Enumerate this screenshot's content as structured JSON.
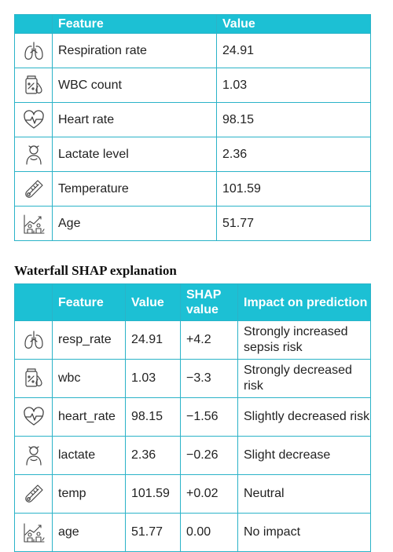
{
  "table1": {
    "headers": [
      "Feature",
      "Value"
    ],
    "rows": [
      {
        "icon": "lungs-icon",
        "feature": "Respiration rate",
        "value": "24.91"
      },
      {
        "icon": "test-tube-icon",
        "feature": "WBC count",
        "value": "1.03"
      },
      {
        "icon": "heart-rate-icon",
        "feature": "Heart rate",
        "value": "98.15"
      },
      {
        "icon": "patient-icon",
        "feature": "Lactate level",
        "value": "2.36"
      },
      {
        "icon": "thermometer-icon",
        "feature": "Temperature",
        "value": "101.59"
      },
      {
        "icon": "age-chart-icon",
        "feature": "Age",
        "value": "51.77"
      }
    ]
  },
  "caption": "Waterfall SHAP explanation",
  "table2": {
    "headers": [
      "Feature",
      "Value",
      "SHAP value",
      "Impact on prediction"
    ],
    "rows": [
      {
        "icon": "lungs-icon",
        "feature": "resp_rate",
        "value": "24.91",
        "shap": "+4.2",
        "impact": "Strongly increased sepsis risk"
      },
      {
        "icon": "test-tube-icon",
        "feature": "wbc",
        "value": "1.03",
        "shap": "−3.3",
        "impact": "Strongly decreased risk"
      },
      {
        "icon": "heart-rate-icon",
        "feature": "heart_rate",
        "value": "98.15",
        "shap": "−1.56",
        "impact": "Slightly decreased risk"
      },
      {
        "icon": "patient-icon",
        "feature": "lactate",
        "value": "2.36",
        "shap": "−0.26",
        "impact": "Slight decrease"
      },
      {
        "icon": "thermometer-icon",
        "feature": "temp",
        "value": "101.59",
        "shap": "+0.02",
        "impact": "Neutral"
      },
      {
        "icon": "age-chart-icon",
        "feature": "age",
        "value": "51.77",
        "shap": "0.00",
        "impact": "No impact"
      }
    ]
  },
  "colors": {
    "header_bg": "#1cc0d4",
    "border": "#2bb3c8"
  }
}
